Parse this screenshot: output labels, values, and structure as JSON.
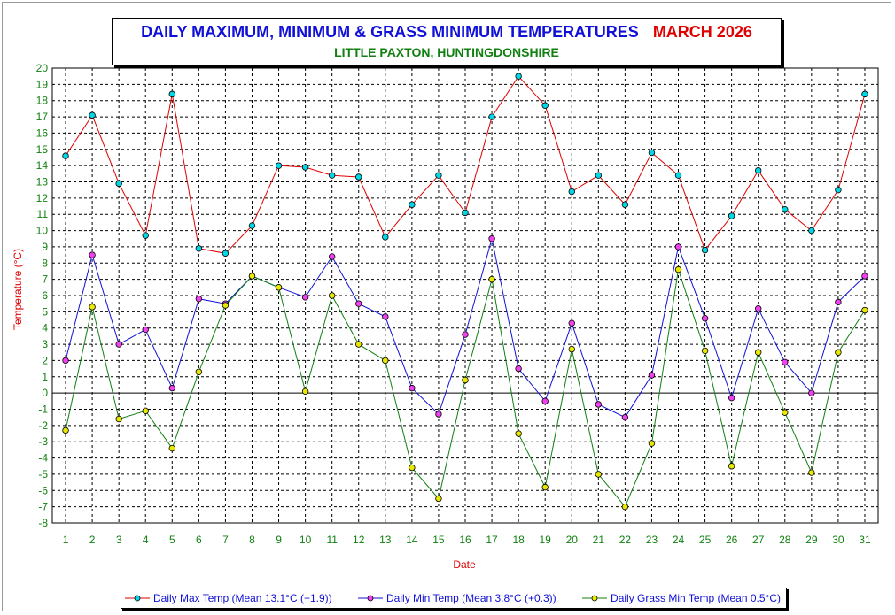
{
  "header": {
    "title": "DAILY MAXIMUM, MINIMUM & GRASS MINIMUM TEMPERATURES",
    "month": "MARCH 2026",
    "subtitle": "LITTLE PAXTON, HUNTINGDONSHIRE"
  },
  "colors": {
    "max_line": "#e00000",
    "max_marker": "#00d8e8",
    "min_line": "#1010d8",
    "min_marker": "#f040f0",
    "grass_line": "#108010",
    "grass_marker": "#e8e800",
    "axis_label": "#e00000",
    "tick_label": "#108010",
    "grid": "#000000"
  },
  "chart_data": {
    "type": "line",
    "title": "DAILY MAXIMUM, MINIMUM & GRASS MINIMUM TEMPERATURES",
    "xlabel": "Date",
    "ylabel": "Temperature (°C)",
    "ylim": [
      -8,
      20
    ],
    "grid": true,
    "legend": "bottom",
    "categories": [
      1,
      2,
      3,
      4,
      5,
      6,
      7,
      8,
      9,
      10,
      11,
      12,
      13,
      14,
      15,
      16,
      17,
      18,
      19,
      20,
      21,
      22,
      23,
      24,
      25,
      26,
      27,
      28,
      29,
      30,
      31
    ],
    "series": [
      {
        "name": "Daily Max Temp (Mean 13.1°C (+1.9))",
        "values": [
          14.6,
          17.1,
          12.9,
          9.7,
          18.4,
          8.9,
          8.6,
          10.3,
          14.0,
          13.9,
          13.4,
          13.3,
          9.6,
          11.6,
          13.4,
          11.1,
          17.0,
          19.5,
          17.7,
          12.4,
          13.4,
          11.6,
          14.8,
          13.4,
          8.8,
          10.9,
          13.7,
          11.3,
          10.0,
          12.5,
          18.4
        ]
      },
      {
        "name": "Daily Min Temp (Mean 3.8°C (+0.3))",
        "values": [
          2.0,
          8.5,
          3.0,
          3.9,
          0.3,
          5.8,
          5.5,
          7.2,
          6.5,
          5.9,
          8.4,
          5.5,
          4.7,
          0.3,
          -1.3,
          3.6,
          9.5,
          1.5,
          -0.5,
          4.3,
          -0.7,
          -1.5,
          1.1,
          9.0,
          4.6,
          -0.3,
          5.2,
          1.9,
          0.0,
          5.6,
          7.2
        ]
      },
      {
        "name": "Daily Grass Min Temp (Mean 0.5°C)",
        "values": [
          -2.3,
          5.3,
          -1.6,
          -1.1,
          -3.4,
          1.3,
          5.4,
          7.2,
          6.5,
          0.1,
          6.0,
          3.0,
          2.0,
          -4.6,
          -6.5,
          0.8,
          7.0,
          -2.5,
          -5.8,
          2.7,
          -5.0,
          -7.0,
          -3.1,
          7.6,
          2.6,
          -4.5,
          2.5,
          -1.2,
          -4.9,
          2.5,
          5.1
        ]
      }
    ]
  }
}
